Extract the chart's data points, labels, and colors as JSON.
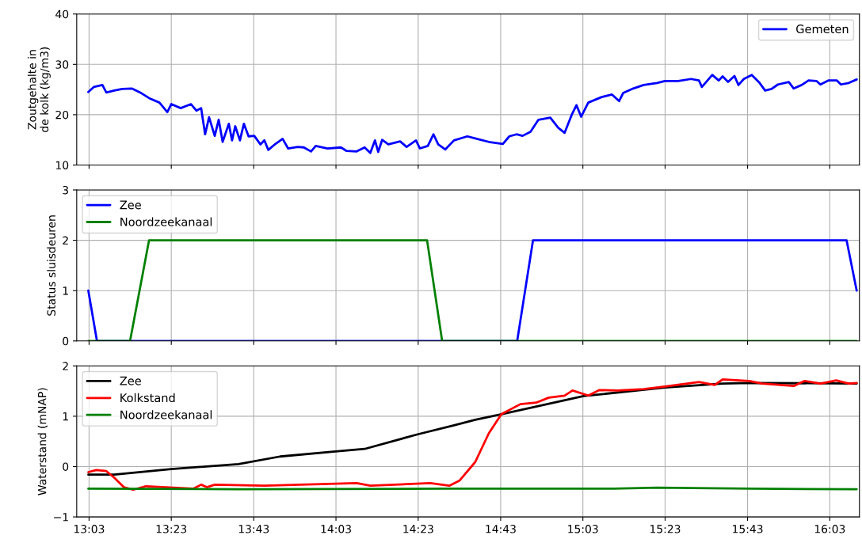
{
  "chart_data": [
    {
      "type": "line",
      "ylabel": "Zoutgehalte in\nde kolk (kg/m3)",
      "legend": "top right",
      "grid": true,
      "tick_labels": "y",
      "xlim": [
        13.0,
        16.17
      ],
      "xticks": [
        {
          "value": 13.05,
          "label": null
        },
        {
          "value": 13.383,
          "label": null
        },
        {
          "value": 13.717,
          "label": null
        },
        {
          "value": 14.05,
          "label": null
        },
        {
          "value": 14.383,
          "label": null
        },
        {
          "value": 14.717,
          "label": null
        },
        {
          "value": 15.05,
          "label": null
        },
        {
          "value": 15.383,
          "label": null
        },
        {
          "value": 15.717,
          "label": null
        },
        {
          "value": 16.05,
          "label": null
        }
      ],
      "ylim": [
        10,
        40
      ],
      "yticks": [
        10,
        20,
        30,
        40
      ],
      "series": [
        {
          "name": "Gemeten",
          "color": "#0000ff",
          "x": [
            13.047,
            13.069,
            13.104,
            13.12,
            13.152,
            13.184,
            13.223,
            13.261,
            13.293,
            13.335,
            13.367,
            13.383,
            13.421,
            13.463,
            13.485,
            13.504,
            13.52,
            13.536,
            13.559,
            13.575,
            13.591,
            13.616,
            13.629,
            13.642,
            13.661,
            13.677,
            13.696,
            13.719,
            13.744,
            13.76,
            13.776,
            13.805,
            13.834,
            13.856,
            13.895,
            13.92,
            13.949,
            13.968,
            14.016,
            14.07,
            14.093,
            14.134,
            14.166,
            14.189,
            14.208,
            14.221,
            14.237,
            14.262,
            14.31,
            14.336,
            14.374,
            14.39,
            14.422,
            14.445,
            14.464,
            14.493,
            14.528,
            14.582,
            14.614,
            14.669,
            14.726,
            14.752,
            14.781,
            14.806,
            14.838,
            14.87,
            14.918,
            14.95,
            14.976,
            15.005,
            15.024,
            15.043,
            15.072,
            15.126,
            15.168,
            15.197,
            15.213,
            15.254,
            15.296,
            15.35,
            15.382,
            15.436,
            15.488,
            15.52,
            15.532,
            15.574,
            15.6,
            15.616,
            15.638,
            15.664,
            15.68,
            15.702,
            15.734,
            15.766,
            15.788,
            15.814,
            15.84,
            15.884,
            15.904,
            15.936,
            15.964,
            15.996,
            16.012,
            16.044,
            16.079,
            16.095,
            16.127,
            16.159
          ],
          "values": [
            24.5,
            25.5,
            25.9,
            24.4,
            24.8,
            25.1,
            25.2,
            24.3,
            23.3,
            22.4,
            20.5,
            22.1,
            21.3,
            22.1,
            20.8,
            21.3,
            16.1,
            19.5,
            15.8,
            19.0,
            14.6,
            18.2,
            14.9,
            17.7,
            14.9,
            18.2,
            15.7,
            15.8,
            14.1,
            14.9,
            13.0,
            14.2,
            15.2,
            13.3,
            13.6,
            13.5,
            12.7,
            13.8,
            13.3,
            13.5,
            12.8,
            12.7,
            13.5,
            12.4,
            14.9,
            12.6,
            15.0,
            14.1,
            14.7,
            13.6,
            14.9,
            13.3,
            13.8,
            16.1,
            14.1,
            13.1,
            14.9,
            15.7,
            15.3,
            14.6,
            14.2,
            15.7,
            16.1,
            15.8,
            16.6,
            19.0,
            19.4,
            17.4,
            16.4,
            20.0,
            21.9,
            19.6,
            22.4,
            23.5,
            24.0,
            22.7,
            24.3,
            25.2,
            25.9,
            26.3,
            26.7,
            26.7,
            27.1,
            26.8,
            25.5,
            27.9,
            26.8,
            27.6,
            26.5,
            27.7,
            25.9,
            27.1,
            27.9,
            26.3,
            24.8,
            25.1,
            26.0,
            26.5,
            25.2,
            25.9,
            26.8,
            26.7,
            26.0,
            26.8,
            26.8,
            26.0,
            26.3,
            27.0
          ]
        }
      ]
    },
    {
      "type": "line",
      "ylabel": "Status sluisdeuren",
      "legend": "top left",
      "grid": true,
      "tick_labels": "y",
      "xlim": [
        13.0,
        16.17
      ],
      "xticks": [
        {
          "value": 13.05,
          "label": null
        },
        {
          "value": 13.383,
          "label": null
        },
        {
          "value": 13.717,
          "label": null
        },
        {
          "value": 14.05,
          "label": null
        },
        {
          "value": 14.383,
          "label": null
        },
        {
          "value": 14.717,
          "label": null
        },
        {
          "value": 15.05,
          "label": null
        },
        {
          "value": 15.383,
          "label": null
        },
        {
          "value": 15.717,
          "label": null
        },
        {
          "value": 16.05,
          "label": null
        }
      ],
      "ylim": [
        0,
        3
      ],
      "yticks": [
        0,
        1,
        2,
        3
      ],
      "series": [
        {
          "name": "Zee",
          "color": "#0000ff",
          "x": [
            13.047,
            13.082,
            14.784,
            14.848,
            16.118,
            16.159
          ],
          "values": [
            1,
            0,
            0,
            2,
            2,
            1
          ]
        },
        {
          "name": "Noordzeekanaal",
          "color": "#008000",
          "x": [
            13.047,
            13.216,
            13.293,
            14.419,
            14.48,
            16.159
          ],
          "values": [
            0,
            0,
            2,
            2,
            0,
            0
          ]
        }
      ]
    },
    {
      "type": "line",
      "ylabel": "Waterstand (mNAP)",
      "legend": "top left",
      "grid": true,
      "xlim": [
        13.0,
        16.17
      ],
      "xticks": [
        {
          "value": 13.05,
          "label": "13:03"
        },
        {
          "value": 13.383,
          "label": "13:23"
        },
        {
          "value": 13.717,
          "label": "13:43"
        },
        {
          "value": 14.05,
          "label": "14:03"
        },
        {
          "value": 14.383,
          "label": "14:23"
        },
        {
          "value": 14.717,
          "label": "14:43"
        },
        {
          "value": 15.05,
          "label": "15:03"
        },
        {
          "value": 15.383,
          "label": "15:23"
        },
        {
          "value": 15.717,
          "label": "15:43"
        },
        {
          "value": 16.05,
          "label": "16:03"
        }
      ],
      "ylim": [
        -1,
        2
      ],
      "yticks": [
        {
          "value": -1,
          "label": "−1"
        },
        0,
        1,
        2
      ],
      "series": [
        {
          "name": "Zee",
          "color": "#000000",
          "x": [
            13.047,
            13.152,
            13.383,
            13.655,
            13.824,
            14.048,
            14.166,
            14.381,
            14.528,
            14.614,
            14.72,
            15.053,
            15.382,
            15.616,
            15.724,
            16.159
          ],
          "values": [
            -0.16,
            -0.16,
            -0.05,
            0.05,
            0.2,
            0.3,
            0.35,
            0.64,
            0.82,
            0.93,
            1.04,
            1.4,
            1.57,
            1.65,
            1.66,
            1.65
          ]
        },
        {
          "name": "Kolkstand",
          "color": "#ff0000",
          "x": [
            13.047,
            13.079,
            13.12,
            13.152,
            13.191,
            13.229,
            13.28,
            13.472,
            13.504,
            13.527,
            13.559,
            13.76,
            14.134,
            14.189,
            14.432,
            14.509,
            14.55,
            14.614,
            14.669,
            14.72,
            14.797,
            14.861,
            14.912,
            14.976,
            15.008,
            15.072,
            15.117,
            15.19,
            15.296,
            15.382,
            15.52,
            15.584,
            15.616,
            15.724,
            15.776,
            15.904,
            15.948,
            16.012,
            16.076,
            16.127,
            16.159
          ],
          "values": [
            -0.11,
            -0.07,
            -0.09,
            -0.22,
            -0.41,
            -0.46,
            -0.39,
            -0.44,
            -0.36,
            -0.41,
            -0.36,
            -0.38,
            -0.33,
            -0.38,
            -0.33,
            -0.38,
            -0.28,
            0.09,
            0.66,
            1.04,
            1.24,
            1.27,
            1.37,
            1.41,
            1.51,
            1.41,
            1.52,
            1.51,
            1.54,
            1.59,
            1.68,
            1.62,
            1.73,
            1.7,
            1.65,
            1.6,
            1.7,
            1.65,
            1.71,
            1.65,
            1.66
          ]
        },
        {
          "name": "Noordzeekanaal",
          "color": "#008000",
          "x": [
            13.047,
            13.655,
            14.486,
            15.175,
            15.35,
            15.574,
            15.734,
            16.159
          ],
          "values": [
            -0.44,
            -0.45,
            -0.44,
            -0.44,
            -0.42,
            -0.43,
            -0.44,
            -0.45
          ]
        }
      ]
    }
  ]
}
